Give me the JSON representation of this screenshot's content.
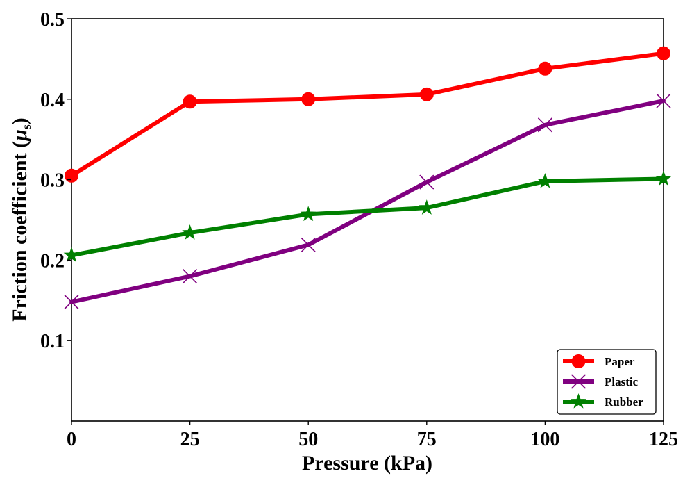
{
  "chart_data": {
    "type": "line",
    "title": "",
    "xlabel": "Pressure (kPa)",
    "ylabel": "Friction coefficient (",
    "ylabel_symbol": "μ",
    "ylabel_subscript": "s",
    "ylabel_close": ")",
    "x": [
      0,
      25,
      50,
      75,
      100,
      125
    ],
    "xlim": [
      0,
      125
    ],
    "ylim": [
      0.0,
      0.5
    ],
    "xticks": [
      "0",
      "25",
      "50",
      "75",
      "100",
      "125"
    ],
    "yticks": [
      "0.1",
      "0.2",
      "0.3",
      "0.4",
      "0.5"
    ],
    "ytick_values": [
      0.1,
      0.2,
      0.3,
      0.4,
      0.5
    ],
    "grid": false,
    "legend_position": "bottom-right",
    "series": [
      {
        "name": "Paper",
        "color": "#ff0000",
        "marker": "circle",
        "values": [
          0.305,
          0.397,
          0.4,
          0.406,
          0.438,
          0.457
        ]
      },
      {
        "name": "Plastic",
        "color": "#800080",
        "marker": "x",
        "values": [
          0.148,
          0.18,
          0.219,
          0.297,
          0.368,
          0.398
        ]
      },
      {
        "name": "Rubber",
        "color": "#008000",
        "marker": "star",
        "values": [
          0.206,
          0.234,
          0.257,
          0.265,
          0.298,
          0.301
        ]
      }
    ]
  }
}
